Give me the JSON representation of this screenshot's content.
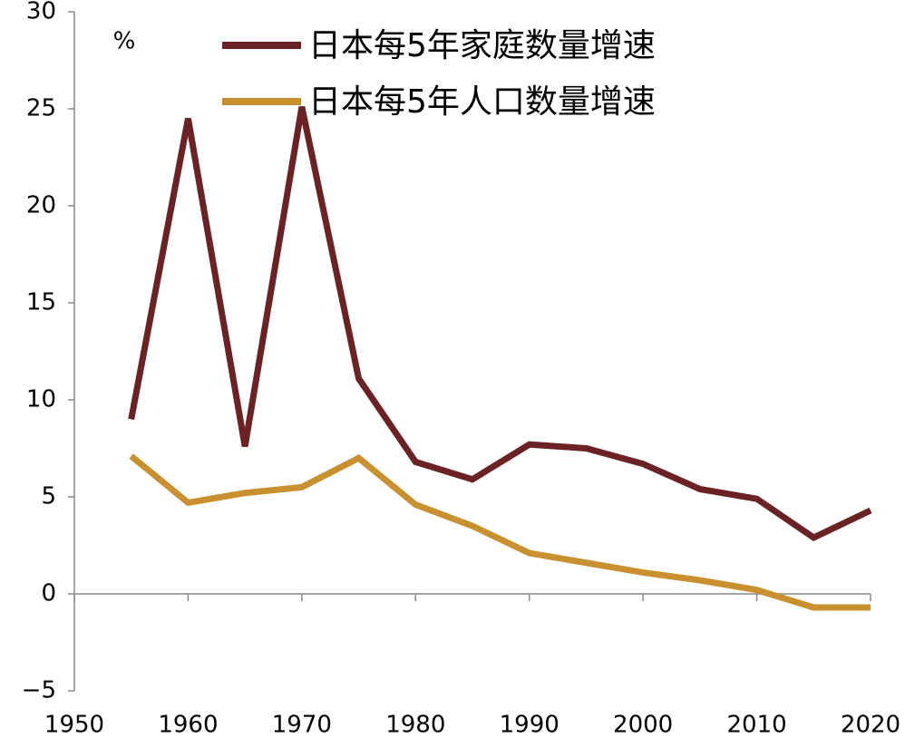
{
  "chart_data": {
    "type": "line",
    "ylabel": "%",
    "x": [
      1955,
      1960,
      1965,
      1970,
      1975,
      1980,
      1985,
      1990,
      1995,
      2000,
      2005,
      2010,
      2015,
      2020
    ],
    "series": [
      {
        "name": "日本每5年家庭数量增速",
        "color": "#6b2224",
        "values": [
          9.0,
          24.5,
          7.6,
          25.1,
          11.1,
          6.8,
          5.9,
          7.7,
          7.5,
          6.7,
          5.4,
          4.9,
          2.9,
          4.3
        ]
      },
      {
        "name": "日本每5年人口数量增速",
        "color": "#c8902f",
        "values": [
          7.1,
          4.7,
          5.2,
          5.5,
          7.0,
          4.6,
          3.5,
          2.1,
          1.6,
          1.1,
          0.7,
          0.2,
          -0.7,
          -0.7
        ]
      }
    ],
    "xlim": [
      1950,
      2020
    ],
    "xticks": [
      1950,
      1960,
      1970,
      1980,
      1990,
      2000,
      2010,
      2020
    ],
    "ylim": [
      -5,
      30
    ],
    "yticks": [
      {
        "value": -5,
        "label": "−5"
      },
      0,
      5,
      10,
      15,
      20,
      25,
      30
    ],
    "grid": false
  }
}
